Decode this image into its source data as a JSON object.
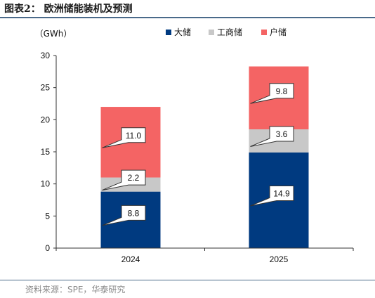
{
  "header": {
    "title": "图表2： 欧洲储能装机及预测"
  },
  "footer": {
    "source": "资料来源：SPE，华泰研究"
  },
  "chart_data": {
    "type": "bar",
    "stacked": true,
    "categories": [
      "2024",
      "2025"
    ],
    "series": [
      {
        "name": "大储",
        "values": [
          8.8,
          14.9
        ],
        "color": "#003a80"
      },
      {
        "name": "工商储",
        "values": [
          2.2,
          3.6
        ],
        "color": "#c8c8c8"
      },
      {
        "name": "户储",
        "values": [
          11.0,
          9.8
        ],
        "color": "#f46464"
      }
    ],
    "data_labels": [
      [
        "8.8",
        "14.9"
      ],
      [
        "2.2",
        "3.6"
      ],
      [
        "11.0",
        "9.8"
      ]
    ],
    "y_unit": "（GWh）",
    "ylim": [
      0,
      30
    ],
    "yticks": [
      "0",
      "5",
      "10",
      "15",
      "20",
      "25",
      "30"
    ],
    "grid": false,
    "legend_position": "top"
  }
}
